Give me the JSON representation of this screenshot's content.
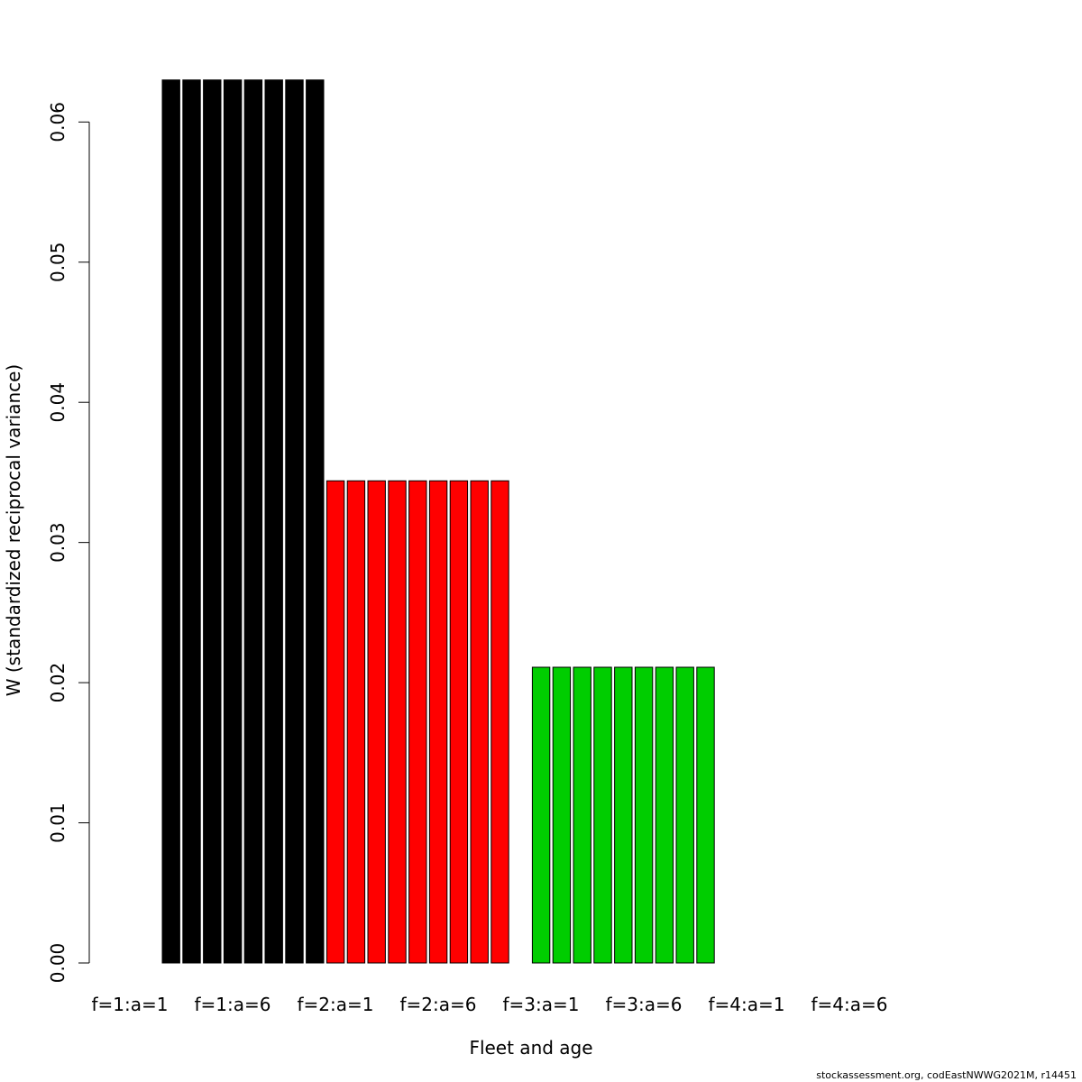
{
  "chart_data": {
    "type": "bar",
    "xlabel": "Fleet and age",
    "ylabel": "W (standardized reciprocal variance)",
    "ylim": [
      0,
      0.06
    ],
    "ymax_plot": 0.0624,
    "yticks": [
      "0.00",
      "0.01",
      "0.02",
      "0.03",
      "0.04",
      "0.05",
      "0.06"
    ],
    "ytick_values": [
      0,
      0.01,
      0.02,
      0.03,
      0.04,
      0.05,
      0.06
    ],
    "x_labels": [
      "f=1:a=1",
      "f=1:a=6",
      "f=2:a=1",
      "f=2:a=6",
      "f=3:a=1",
      "f=3:a=6",
      "f=4:a=1",
      "f=4:a=6"
    ],
    "grid": false,
    "legend": "none",
    "series": [
      {
        "fleet": 1,
        "color": "#000000",
        "values": [
          0.063,
          0.063,
          0.063,
          0.063,
          0.063,
          0.063,
          0.063,
          0.063
        ]
      },
      {
        "fleet": 2,
        "color": "#ff0000",
        "values": [
          0.0344,
          0.0344,
          0.0344,
          0.0344,
          0.0344,
          0.0344,
          0.0344,
          0.0344,
          0.0344
        ]
      },
      {
        "fleet": 3,
        "color": "#00cd00",
        "values": [
          0,
          0.0211,
          0.0211,
          0.0211,
          0.0211,
          0.0211,
          0.0211,
          0.0211,
          0.0211,
          0.0211
        ]
      }
    ]
  },
  "credit": "stockassessment.org, codEastNWWG2021M, r14451"
}
